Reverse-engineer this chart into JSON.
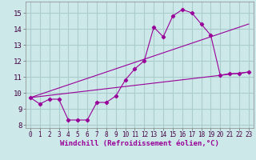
{
  "background_color": "#cce8e8",
  "grid_color": "#aacccc",
  "line_color": "#990099",
  "xlabel": "Windchill (Refroidissement éolien,°C)",
  "xlabel_fontsize": 6.5,
  "xtick_fontsize": 5.5,
  "ytick_fontsize": 6.5,
  "xlim": [
    -0.5,
    23.5
  ],
  "ylim": [
    7.8,
    15.7
  ],
  "yticks": [
    8,
    9,
    10,
    11,
    12,
    13,
    14,
    15
  ],
  "xticks": [
    0,
    1,
    2,
    3,
    4,
    5,
    6,
    7,
    8,
    9,
    10,
    11,
    12,
    13,
    14,
    15,
    16,
    17,
    18,
    19,
    20,
    21,
    22,
    23
  ],
  "line1_x": [
    0,
    1,
    2,
    3,
    4,
    5,
    6,
    7,
    8,
    9,
    10,
    11,
    12,
    13,
    14,
    15,
    16,
    17,
    18,
    19,
    20,
    21,
    22,
    23
  ],
  "line1_y": [
    9.7,
    9.3,
    9.6,
    9.6,
    8.3,
    8.3,
    8.3,
    9.4,
    9.4,
    9.8,
    10.8,
    11.5,
    12.0,
    14.1,
    13.5,
    14.8,
    15.2,
    15.0,
    14.3,
    13.6,
    11.1,
    11.2,
    11.2,
    11.3
  ],
  "line2_x": [
    0,
    23
  ],
  "line2_y": [
    9.7,
    11.3
  ],
  "line3_x": [
    0,
    23
  ],
  "line3_y": [
    9.7,
    14.3
  ]
}
